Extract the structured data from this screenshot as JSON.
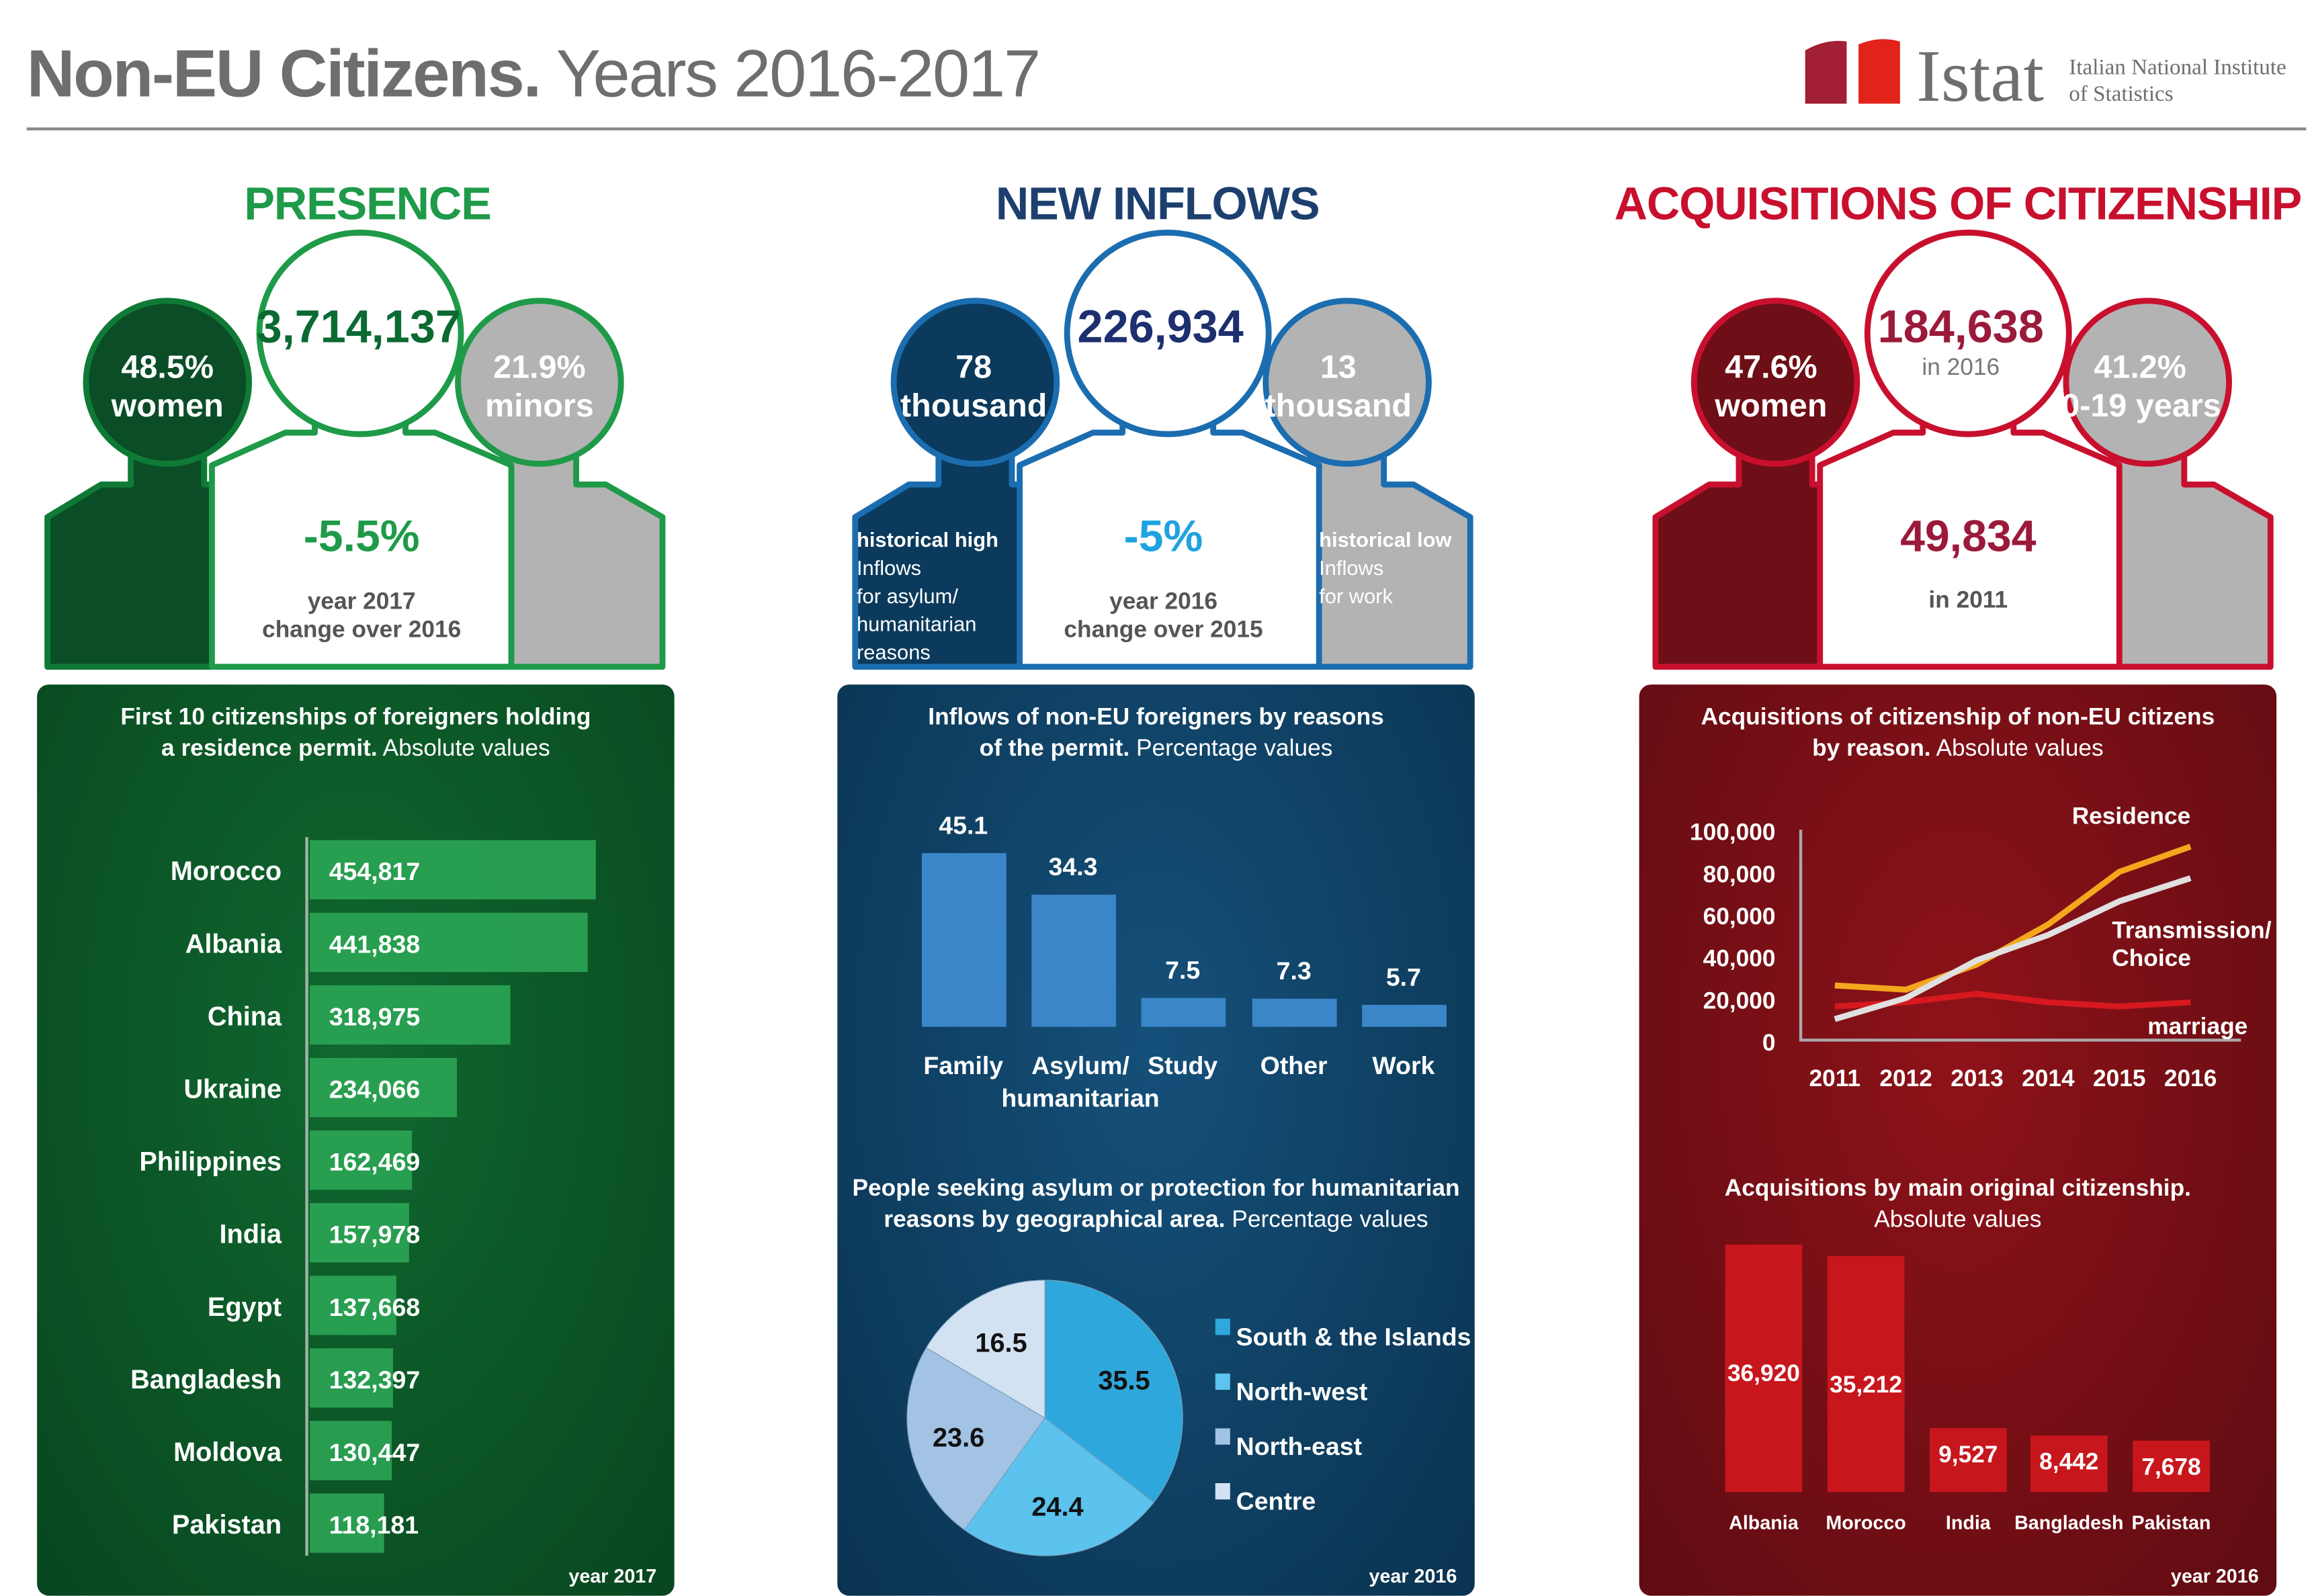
{
  "header": {
    "title_bold": "Non-EU Citizens.",
    "title_rest": " Years 2016-2017",
    "logo_text": "Istat",
    "institute_line1": "Italian National Institute",
    "institute_line2": "of Statistics"
  },
  "colors": {
    "presence": "#1e9a48",
    "inflows": "#1d4e78",
    "acquisitions": "#c8102e",
    "green_dark": "#0a4d27",
    "blue_dark": "#0b3a5c",
    "red_dark": "#6e0e16",
    "gray": "#b3b3b3"
  },
  "presence": {
    "title": "PRESENCE",
    "total": "3,714,137",
    "women_pct": "48.5%",
    "women_label": "women",
    "minors_pct": "21.9%",
    "minors_label": "minors",
    "change": "-5.5%",
    "change_line1": "year 2017",
    "change_line2": "change over 2016",
    "panel": {
      "title_bold1": "First 10 citizenships of foreigners holding",
      "title_bold2": "a residence permit.",
      "title_rest": " Absolute values",
      "year": "year 2017"
    }
  },
  "inflows": {
    "title": "NEW INFLOWS",
    "total": "226,934",
    "asylum_value": "78",
    "asylum_unit": "thousand",
    "asylum_note": [
      "historical high",
      "Inflows",
      "for asylum/",
      "humanitarian",
      "reasons"
    ],
    "work_value": "13",
    "work_unit": "thousand",
    "work_note": [
      "historical low",
      "Inflows",
      "for work"
    ],
    "change": "-5%",
    "change_line1": "year 2016",
    "change_line2": "change over 2015",
    "panel": {
      "title1_bold1": "Inflows of non-EU foreigners by reasons",
      "title1_bold2": "of the permit.",
      "title1_rest": " Percentage values",
      "title2_bold1": "People seeking asylum or protection for humanitarian",
      "title2_bold2": "reasons by geographical area.",
      "title2_rest": " Percentage values",
      "year": "year 2016"
    }
  },
  "acquisitions": {
    "title": "ACQUISITIONS OF CITIZENSHIP",
    "total": "184,638",
    "total_sub": "in 2016",
    "women_pct": "47.6%",
    "women_label": "women",
    "young_pct": "41.2%",
    "young_label": "0-19 years",
    "value_2011": "49,834",
    "label_2011": "in 2011",
    "panel": {
      "title1_bold1": "Acquisitions of citizenship of non-EU citizens",
      "title1_bold2": "by reason.",
      "title1_rest": " Absolute values",
      "title2_bold": "Acquisitions by main original citizenship.",
      "title2_rest": "Absolute values",
      "year": "year 2016"
    }
  },
  "chart_data": [
    {
      "type": "bar",
      "orientation": "horizontal",
      "categories": [
        "Morocco",
        "Albania",
        "China",
        "Ukraine",
        "Philippines",
        "India",
        "Egypt",
        "Bangladesh",
        "Moldova",
        "Pakistan"
      ],
      "values": [
        454817,
        441838,
        318975,
        234066,
        162469,
        157978,
        137668,
        132397,
        130447,
        118181
      ],
      "labels": [
        "454,817",
        "441,838",
        "318,975",
        "234,066",
        "162,469",
        "157,978",
        "137,668",
        "132,397",
        "130,447",
        "118,181"
      ]
    },
    {
      "type": "bar",
      "categories": [
        "Family",
        "Asylum/ humanitarian",
        "Study",
        "Other",
        "Work"
      ],
      "category_lines": [
        [
          "Family"
        ],
        [
          "Asylum/",
          "humanitarian"
        ],
        [
          "Study"
        ],
        [
          "Other"
        ],
        [
          "Work"
        ]
      ],
      "values": [
        45.1,
        34.3,
        7.5,
        7.3,
        5.7
      ],
      "labels": [
        "45.1",
        "34.3",
        "7.5",
        "7.3",
        "5.7"
      ]
    },
    {
      "type": "pie",
      "categories": [
        "South & the Islands",
        "North-west",
        "North-east",
        "Centre"
      ],
      "values": [
        35.5,
        24.4,
        23.6,
        16.5
      ],
      "labels": [
        "35.5",
        "24.4",
        "23.6",
        "16.5"
      ],
      "colors": [
        "#2ea8dc",
        "#5bc3ee",
        "#a3c3e4",
        "#d2e2f2"
      ],
      "legend": "right"
    },
    {
      "type": "line",
      "x": [
        2011,
        2012,
        2013,
        2014,
        2015,
        2016
      ],
      "x_ticks": [
        "2011",
        "2012",
        "2013",
        "2014",
        "2015",
        "2016"
      ],
      "y_ticks": [
        "100,000",
        "80,000",
        "60,000",
        "40,000",
        "20,000",
        "0"
      ],
      "ylim": [
        0,
        100000
      ],
      "series": [
        {
          "name": "Residence",
          "values": [
            26000,
            24000,
            36000,
            55000,
            80000,
            92000
          ],
          "color": "#f4a71d"
        },
        {
          "name": "Transmission/ Choice",
          "name_lines": [
            "Transmission/",
            "Choice"
          ],
          "values": [
            10000,
            20000,
            38000,
            50000,
            66000,
            77000
          ],
          "color": "#e0e0e0"
        },
        {
          "name": "marriage",
          "values": [
            16000,
            18000,
            22000,
            18000,
            16000,
            18000
          ],
          "color": "#d7191f"
        }
      ]
    },
    {
      "type": "bar",
      "categories": [
        "Albania",
        "Morocco",
        "India",
        "Bangladesh",
        "Pakistan"
      ],
      "values": [
        36920,
        35212,
        9527,
        8442,
        7678
      ],
      "labels": [
        "36,920",
        "35,212",
        "9,527",
        "8,442",
        "7,678"
      ]
    }
  ]
}
